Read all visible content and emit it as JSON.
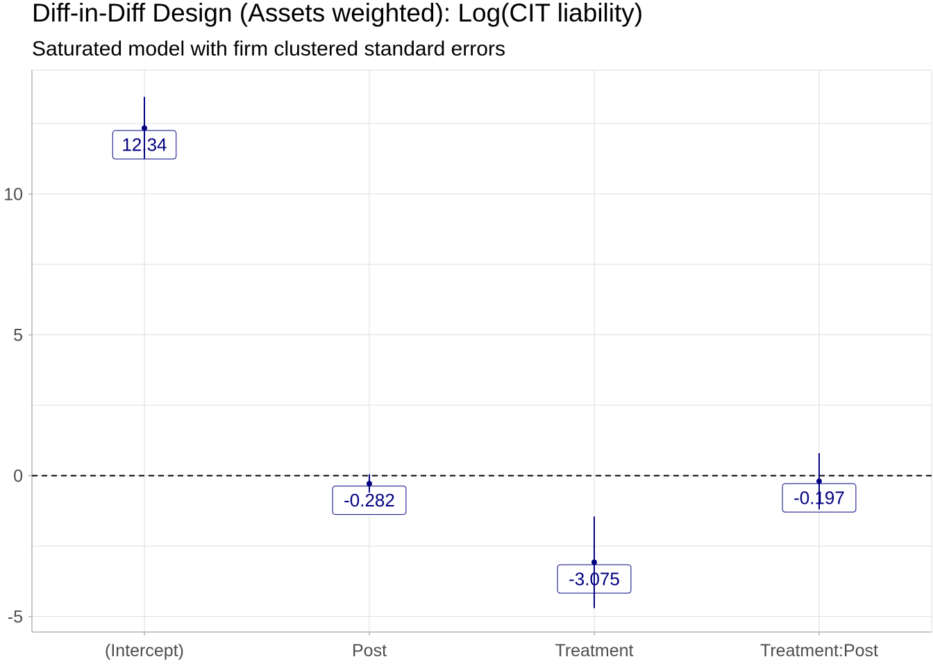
{
  "chart_data": {
    "type": "scatter",
    "title": "Diff-in-Diff Design (Assets weighted): Log(CIT liability)",
    "subtitle": "Saturated model with firm clustered standard errors",
    "xlabel": "",
    "ylabel": "",
    "categories": [
      "(Intercept)",
      "Post",
      "Treatment",
      "Treatment:Post"
    ],
    "estimates": [
      12.34,
      -0.282,
      -3.075,
      -0.197
    ],
    "ci_lower": [
      11.25,
      -0.6,
      -4.7,
      -1.2
    ],
    "ci_upper": [
      13.45,
      0.05,
      -1.45,
      0.8
    ],
    "labels": [
      "12.34",
      "-0.282",
      "-3.075",
      "-0.197"
    ],
    "ylim": [
      -5.55,
      14.4
    ],
    "y_ticks": [
      -5,
      0,
      5,
      10
    ],
    "y_tick_labels": [
      "-5",
      "0",
      "5",
      "10"
    ],
    "reference_line": 0,
    "grid": true,
    "legend": "none",
    "colors": {
      "point": "#000080",
      "label_text": "#000080",
      "grid": "#dedede",
      "axis": "#b3b3b3",
      "reference": "#000000"
    }
  }
}
